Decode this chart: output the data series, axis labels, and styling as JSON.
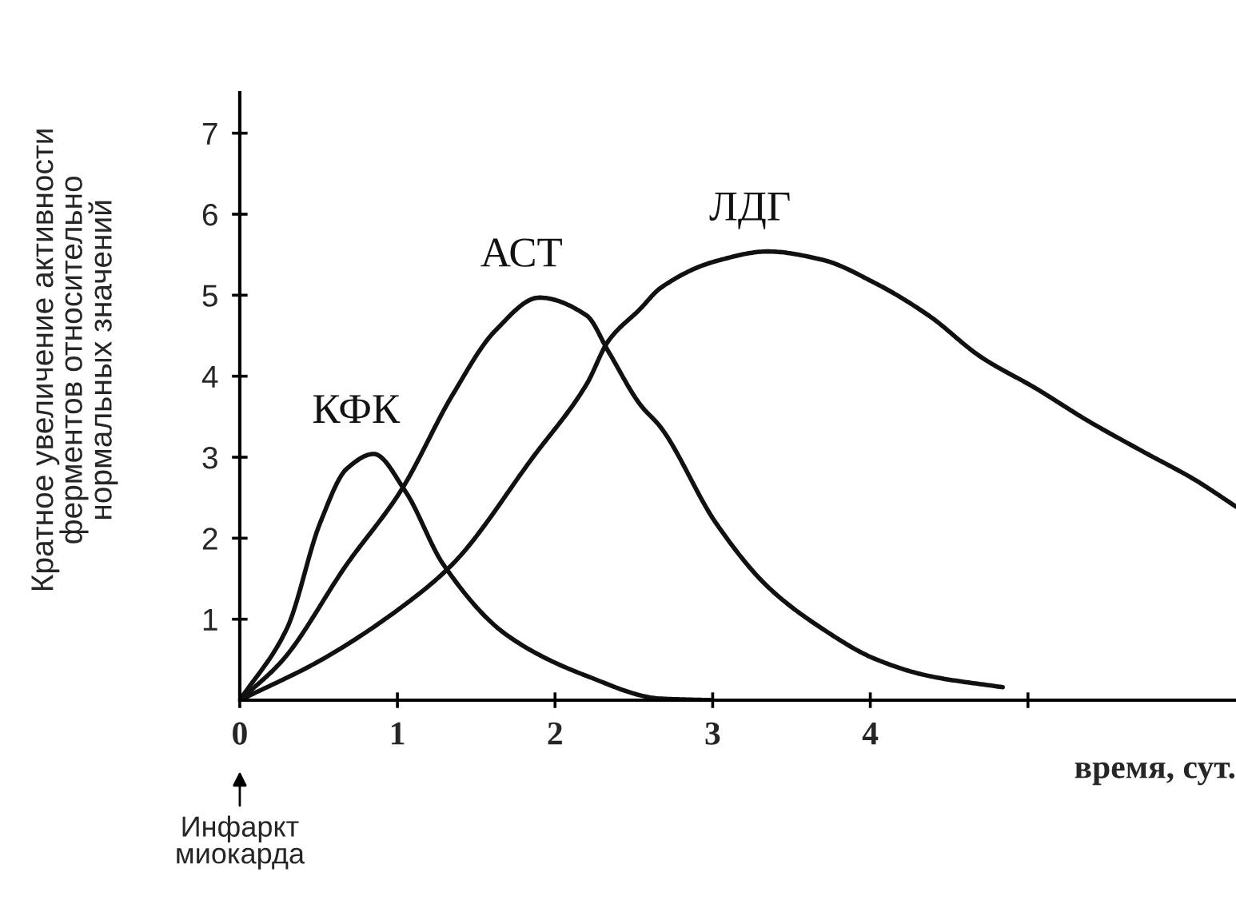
{
  "chart_data": {
    "type": "line",
    "xlabel": "время, сут.",
    "ylabel": "Кратное увеличение активности\nферментов относительно\nнормальных значений",
    "xlim": [
      0,
      6.32
    ],
    "ylim": [
      0,
      7.5
    ],
    "xticks": [
      0,
      1,
      2,
      3,
      4,
      {
        "value": 5,
        "label": null
      }
    ],
    "yticks": [
      1,
      2,
      3,
      4,
      5,
      6,
      7
    ],
    "grid": false,
    "legend": false,
    "marker": "none",
    "line_style": "solid",
    "annotations": [
      "Инфаркт\nмиокарда"
    ],
    "series": [
      {
        "name": "КФК",
        "color": "#111111",
        "x": [
          0,
          0.3,
          0.51,
          0.68,
          0.85,
          1.05,
          1.29,
          1.69,
          2.2,
          2.67,
          3.0
        ],
        "values": [
          0,
          0.89,
          2.19,
          2.86,
          3.04,
          2.58,
          1.68,
          0.81,
          0.3,
          0.02,
          0
        ]
      },
      {
        "name": "АСТ",
        "color": "#111111",
        "x": [
          0,
          0.27,
          0.68,
          1.02,
          1.35,
          1.62,
          1.9,
          2.2,
          2.34,
          2.54,
          2.67,
          3.02,
          3.35,
          3.69,
          4.03,
          4.37,
          4.84
        ],
        "values": [
          0,
          0.49,
          1.68,
          2.58,
          3.77,
          4.56,
          4.97,
          4.75,
          4.3,
          3.65,
          3.37,
          2.19,
          1.4,
          0.89,
          0.51,
          0.3,
          0.16
        ]
      },
      {
        "name": "ЛДГ",
        "color": "#111111",
        "x": [
          0,
          0.51,
          1.02,
          1.35,
          1.86,
          2.2,
          2.34,
          2.54,
          2.67,
          3.02,
          3.35,
          3.69,
          4.03,
          4.37,
          4.7,
          5.05,
          5.38,
          5.72,
          6.06,
          6.32
        ],
        "values": [
          0,
          0.49,
          1.14,
          1.68,
          3.0,
          3.9,
          4.44,
          4.83,
          5.09,
          5.42,
          5.54,
          5.44,
          5.15,
          4.75,
          4.24,
          3.85,
          3.45,
          3.08,
          2.72,
          2.39
        ]
      }
    ]
  }
}
